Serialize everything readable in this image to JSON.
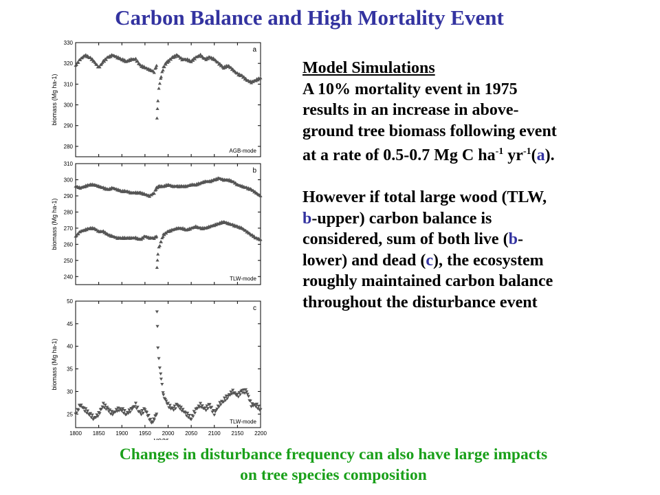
{
  "page": {
    "title": "Carbon Balance and High Mortality Event",
    "footer_line1": "Changes in disturbance frequency can also have large impacts",
    "footer_line2": "on tree species composition"
  },
  "text": {
    "heading": "Model Simulations",
    "p1_line1": "A 10% mortality event in 1975",
    "p1_line2": "results in an increase in above-",
    "p1_line3": "ground tree biomass following event",
    "p1_line4_a": "at a rate of 0.5-0.7 Mg C ha",
    "p1_line4_sup1": "-1",
    "p1_line4_b": " yr",
    "p1_line4_sup2": "-1",
    "p1_line4_c": "(",
    "p1_line4_link": "a",
    "p1_line4_d": ").",
    "p2_line1": "However if total large wood (TLW,",
    "p2_line2_link": "b",
    "p2_line2_rest": "-upper) carbon balance is",
    "p2_line3_a": "considered, sum of both live (",
    "p2_line3_link": "b",
    "p2_line3_b": "-",
    "p2_line4_a": "lower) and dead (",
    "p2_line4_link": "c",
    "p2_line4_b": "), the ecosystem",
    "p2_line5": "roughly maintained carbon balance",
    "p2_line6": "throughout the disturbance event"
  },
  "colors": {
    "title": "#3333a0",
    "accent": "#3333a0",
    "footer": "#1aa01a",
    "markers": "#555555"
  },
  "chart_data": [
    {
      "type": "scatter",
      "panel": "a",
      "annotation": "AGB-mode",
      "ylabel": "biomass (Mg ha-1)",
      "xlim": [
        1800,
        2200
      ],
      "ylim": [
        275,
        330
      ],
      "yticks": [
        280,
        290,
        300,
        310,
        320,
        330
      ],
      "marker": "triangle-up",
      "series": [
        {
          "x": [
            1800,
            1810,
            1820,
            1830,
            1840,
            1850,
            1860,
            1870,
            1880,
            1890,
            1900,
            1910,
            1920,
            1930,
            1940,
            1950,
            1960,
            1970,
            1975,
            1976,
            1977,
            1978,
            1980,
            1985,
            1990,
            1995,
            2000,
            2010,
            2020,
            2030,
            2040,
            2050,
            2060,
            2070,
            2080,
            2090,
            2100,
            2110,
            2120,
            2130,
            2140,
            2150,
            2160,
            2170,
            2180,
            2190,
            2200
          ],
          "y": [
            319,
            322,
            324,
            323,
            321,
            318,
            321,
            323,
            324,
            323,
            322,
            321,
            322,
            322,
            319,
            318,
            317,
            316,
            319,
            294,
            298,
            302,
            308,
            314,
            318,
            320,
            321,
            323,
            324,
            322,
            322,
            321,
            323,
            324,
            322,
            323,
            322,
            320,
            318,
            319,
            317,
            315,
            314,
            312,
            311,
            312,
            313
          ]
        }
      ]
    },
    {
      "type": "scatter",
      "panel": "b",
      "annotation": "TLW-mode",
      "ylabel": "biomass (Mg ha-1)",
      "xlim": [
        1800,
        2200
      ],
      "ylim": [
        235,
        310
      ],
      "yticks": [
        240,
        250,
        260,
        270,
        280,
        290,
        300,
        310
      ],
      "marker": "triangle-up",
      "series": [
        {
          "x": [
            1800,
            1810,
            1820,
            1830,
            1840,
            1850,
            1860,
            1870,
            1880,
            1890,
            1900,
            1910,
            1920,
            1930,
            1940,
            1950,
            1960,
            1970,
            1975,
            1980,
            1990,
            2000,
            2010,
            2020,
            2030,
            2040,
            2050,
            2060,
            2070,
            2080,
            2090,
            2100,
            2110,
            2120,
            2130,
            2140,
            2150,
            2160,
            2170,
            2180,
            2190,
            2200
          ],
          "y": [
            296,
            295,
            296,
            297,
            297,
            296,
            295,
            294,
            295,
            294,
            293,
            293,
            292,
            292,
            292,
            291,
            290,
            292,
            295,
            296,
            296,
            297,
            296,
            296,
            296,
            296,
            297,
            297,
            298,
            299,
            299,
            300,
            301,
            300,
            300,
            299,
            297,
            296,
            295,
            294,
            292,
            290
          ]
        },
        {
          "x": [
            1800,
            1810,
            1820,
            1830,
            1840,
            1850,
            1860,
            1870,
            1880,
            1890,
            1900,
            1910,
            1920,
            1930,
            1940,
            1950,
            1960,
            1970,
            1975,
            1976,
            1977,
            1978,
            1980,
            1985,
            1990,
            2000,
            2010,
            2020,
            2030,
            2040,
            2050,
            2060,
            2070,
            2080,
            2090,
            2100,
            2110,
            2120,
            2130,
            2140,
            2150,
            2160,
            2170,
            2180,
            2190,
            2200
          ],
          "y": [
            265,
            268,
            269,
            270,
            270,
            268,
            268,
            266,
            265,
            264,
            264,
            264,
            264,
            264,
            263,
            265,
            264,
            264,
            265,
            246,
            250,
            254,
            258,
            262,
            266,
            268,
            269,
            270,
            270,
            269,
            270,
            271,
            270,
            270,
            271,
            272,
            273,
            274,
            273,
            272,
            271,
            270,
            268,
            266,
            264,
            263
          ]
        }
      ]
    },
    {
      "type": "scatter",
      "panel": "c",
      "annotation": "TLW-mode",
      "ylabel": "biomass (Mg ha-1)",
      "xlabel": "year",
      "xlim": [
        1800,
        2200
      ],
      "ylim": [
        22,
        50
      ],
      "yticks": [
        25,
        30,
        35,
        40,
        45,
        50
      ],
      "xticks": [
        1800,
        1850,
        1900,
        1950,
        2000,
        2050,
        2100,
        2150,
        2200
      ],
      "marker": "triangle-down",
      "series": [
        {
          "x": [
            1800,
            1810,
            1820,
            1830,
            1840,
            1850,
            1860,
            1870,
            1880,
            1890,
            1900,
            1910,
            1920,
            1930,
            1940,
            1950,
            1960,
            1965,
            1970,
            1975,
            1976,
            1977,
            1978,
            1980,
            1985,
            1990,
            2000,
            2010,
            2020,
            2030,
            2040,
            2050,
            2060,
            2070,
            2080,
            2090,
            2100,
            2110,
            2120,
            2130,
            2140,
            2150,
            2160,
            2170,
            2180,
            2190,
            2200
          ],
          "y": [
            25,
            27,
            26,
            25,
            24,
            25,
            27,
            26,
            25,
            26,
            26,
            25,
            26,
            27,
            25,
            26,
            24,
            23,
            24,
            25,
            48,
            44,
            40,
            37,
            33,
            29,
            27,
            26,
            27,
            26,
            25,
            24,
            26,
            27,
            26,
            27,
            25,
            27,
            28,
            29,
            30,
            29,
            30,
            30,
            27,
            27,
            26
          ]
        }
      ]
    }
  ]
}
